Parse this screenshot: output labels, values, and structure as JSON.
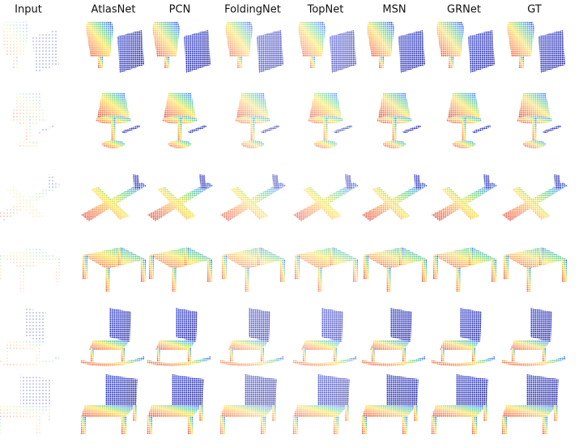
{
  "columns": [
    "Input",
    "AtlasNet",
    "PCN",
    "FoldingNet",
    "TopNet",
    "MSN",
    "GRNet",
    "GT"
  ]
}
